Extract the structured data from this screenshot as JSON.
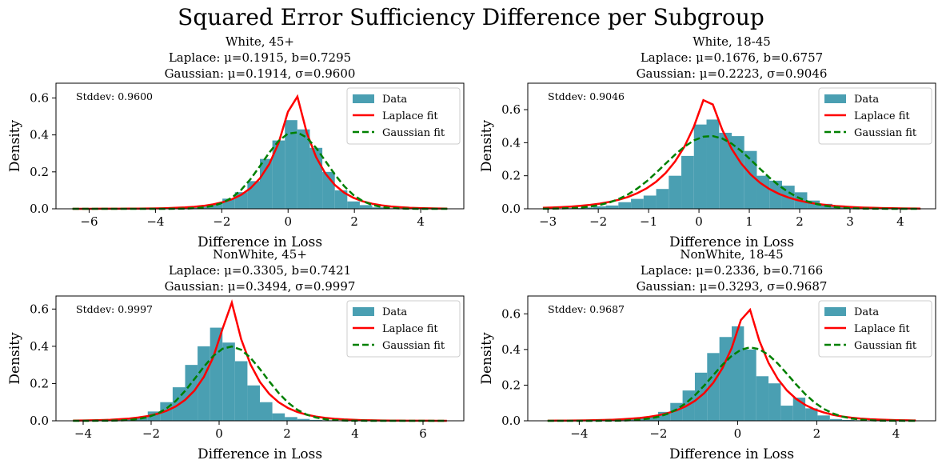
{
  "figure_title": "Squared Error Sufficiency Difference per Subgroup",
  "colors": {
    "bar": "#4a9fb2",
    "laplace": "#ff0000",
    "gaussian": "#008000"
  },
  "chart_data": [
    {
      "type": "bar",
      "title_lines": [
        "White, 45+",
        "Laplace: μ=0.1915, b=0.7295",
        "Gaussian: μ=0.1914, σ=0.9600"
      ],
      "xlabel": "Difference in Loss",
      "ylabel": "Density",
      "xlim": [
        -7.0,
        5.3
      ],
      "ylim": [
        0,
        0.68
      ],
      "xticks": [
        -6,
        -4,
        -2,
        0,
        2,
        4
      ],
      "yticks": [
        0.0,
        0.2,
        0.4,
        0.6
      ],
      "stddev_label": "Stddev: 0.9600",
      "legend": [
        "Data",
        "Laplace fit",
        "Gaussian fit"
      ],
      "bins": [
        -6.5,
        4.8,
        30
      ],
      "hist": [
        0,
        0,
        0,
        0,
        0,
        0,
        0.001,
        0.002,
        0.004,
        0.006,
        0.012,
        0.025,
        0.055,
        0.09,
        0.15,
        0.27,
        0.37,
        0.48,
        0.43,
        0.33,
        0.2,
        0.1,
        0.04,
        0.02,
        0.008,
        0.003,
        0.001,
        0,
        0,
        0
      ],
      "laplace": {
        "mu": 0.1915,
        "b": 0.7295
      },
      "gaussian": {
        "mu": 0.1914,
        "sigma": 0.96
      },
      "curve_range": [
        -6.5,
        4.8
      ]
    },
    {
      "type": "bar",
      "title_lines": [
        "White, 18-45",
        "Laplace: μ=0.1676, b=0.6757",
        "Gaussian: μ=0.2223, σ=0.9046"
      ],
      "xlabel": "Difference in Loss",
      "ylabel": "Density",
      "xlim": [
        -3.4,
        4.7
      ],
      "ylim": [
        0,
        0.76
      ],
      "xticks": [
        -3,
        -2,
        -1,
        0,
        1,
        2,
        3,
        4
      ],
      "yticks": [
        0.0,
        0.2,
        0.4,
        0.6
      ],
      "stddev_label": "Stddev: 0.9046",
      "legend": [
        "Data",
        "Laplace fit",
        "Gaussian fit"
      ],
      "bins": [
        -3.1,
        4.4,
        30
      ],
      "hist": [
        0,
        0.002,
        0.004,
        0.008,
        0.015,
        0.02,
        0.04,
        0.06,
        0.08,
        0.12,
        0.2,
        0.32,
        0.51,
        0.54,
        0.46,
        0.44,
        0.35,
        0.2,
        0.17,
        0.14,
        0.1,
        0.05,
        0.03,
        0.02,
        0.01,
        0.005,
        0.003,
        0.002,
        0.001,
        0
      ],
      "laplace": {
        "mu": 0.1676,
        "b": 0.6757
      },
      "gaussian": {
        "mu": 0.2223,
        "sigma": 0.9046
      },
      "curve_range": [
        -3.1,
        4.4
      ]
    },
    {
      "type": "bar",
      "title_lines": [
        "NonWhite, 45+",
        "Laplace: μ=0.3305, b=0.7421",
        "Gaussian: μ=0.3494, σ=0.9997"
      ],
      "xlabel": "Difference in Loss",
      "ylabel": "Density",
      "xlim": [
        -4.8,
        7.2
      ],
      "ylim": [
        0,
        0.67
      ],
      "xticks": [
        -4,
        -2,
        0,
        2,
        4,
        6
      ],
      "yticks": [
        0.0,
        0.2,
        0.4,
        0.6
      ],
      "stddev_label": "Stddev: 0.9997",
      "legend": [
        "Data",
        "Laplace fit",
        "Gaussian fit"
      ],
      "bins": [
        -4.3,
        6.7,
        30
      ],
      "hist": [
        0,
        0,
        0.002,
        0.005,
        0.01,
        0.02,
        0.05,
        0.1,
        0.18,
        0.3,
        0.4,
        0.5,
        0.42,
        0.32,
        0.19,
        0.1,
        0.04,
        0.02,
        0.01,
        0.005,
        0.003,
        0.002,
        0.001,
        0,
        0,
        0,
        0,
        0,
        0,
        0
      ],
      "laplace": {
        "mu": 0.3305,
        "b": 0.7421
      },
      "gaussian": {
        "mu": 0.3494,
        "sigma": 0.9997
      },
      "curve_range": [
        -4.3,
        6.7
      ]
    },
    {
      "type": "bar",
      "title_lines": [
        "NonWhite, 18-45",
        "Laplace: μ=0.2336, b=0.7166",
        "Gaussian: μ=0.3293, σ=0.9687"
      ],
      "xlabel": "Difference in Loss",
      "ylabel": "Density",
      "xlim": [
        -5.3,
        5.0
      ],
      "ylim": [
        0,
        0.7
      ],
      "xticks": [
        -4,
        -2,
        0,
        2,
        4
      ],
      "yticks": [
        0.0,
        0.2,
        0.4,
        0.6
      ],
      "stddev_label": "Stddev: 0.9687",
      "legend": [
        "Data",
        "Laplace fit",
        "Gaussian fit"
      ],
      "bins": [
        -4.8,
        4.5,
        30
      ],
      "hist": [
        0,
        0,
        0,
        0.001,
        0.002,
        0.004,
        0.008,
        0.015,
        0.02,
        0.05,
        0.1,
        0.17,
        0.27,
        0.38,
        0.47,
        0.53,
        0.4,
        0.25,
        0.21,
        0.085,
        0.13,
        0.07,
        0.03,
        0.01,
        0.005,
        0.003,
        0.001,
        0,
        0,
        0
      ],
      "laplace": {
        "mu": 0.2336,
        "b": 0.7166
      },
      "gaussian": {
        "mu": 0.3293,
        "sigma": 0.9687
      },
      "curve_range": [
        -4.8,
        4.5
      ]
    }
  ]
}
